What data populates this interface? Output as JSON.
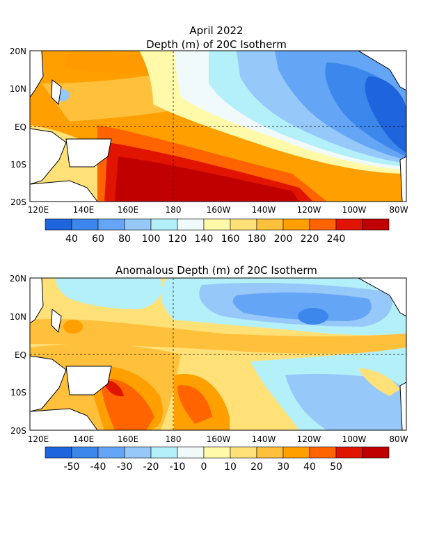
{
  "header": {
    "title": "April 2022",
    "subtitle": "Depth (m) of 20C Isotherm"
  },
  "chart_data": [
    {
      "type": "heatmap",
      "title": "Depth (m) of 20C Isotherm",
      "xlim": [
        "120E",
        "80W"
      ],
      "ylim": [
        "20S",
        "20N"
      ],
      "x_ticks": [
        "120E",
        "140E",
        "160E",
        "180",
        "160W",
        "140W",
        "120W",
        "100W",
        "80W"
      ],
      "y_ticks": [
        "20N",
        "10N",
        "EQ",
        "10S",
        "20S"
      ],
      "grid": "dashed",
      "colorbar": {
        "labels": [
          "40",
          "60",
          "80",
          "100",
          "120",
          "140",
          "160",
          "180",
          "200",
          "220",
          "240"
        ],
        "colors": [
          "#1e64dc",
          "#3c87eb",
          "#64a5f5",
          "#96c8fa",
          "#b4f0fa",
          "#f0fafa",
          "#fffaaa",
          "#ffe178",
          "#ffc03c",
          "#ffa000",
          "#ff6400",
          "#e11400",
          "#c00000"
        ]
      },
      "description_values": {
        "max_region": "western/central South Pacific > 240 m",
        "min_region": "eastern equatorial Pacific < 40 m"
      }
    },
    {
      "type": "heatmap",
      "title": "Anomalous Depth (m) of 20C Isotherm",
      "xlim": [
        "120E",
        "80W"
      ],
      "ylim": [
        "20S",
        "20N"
      ],
      "x_ticks": [
        "120E",
        "140E",
        "160E",
        "180",
        "160W",
        "140W",
        "120W",
        "100W",
        "80W"
      ],
      "y_ticks": [
        "20N",
        "10N",
        "EQ",
        "10S",
        "20S"
      ],
      "grid": "dashed",
      "colorbar": {
        "labels": [
          "-50",
          "-40",
          "-30",
          "-20",
          "-10",
          "0",
          "10",
          "20",
          "30",
          "40",
          "50"
        ],
        "colors": [
          "#1e64dc",
          "#3c87eb",
          "#64a5f5",
          "#96c8fa",
          "#b4f0fa",
          "#f0fafa",
          "#fffaaa",
          "#ffe178",
          "#ffc03c",
          "#ffa000",
          "#ff6400",
          "#e11400",
          "#c00000"
        ]
      }
    }
  ]
}
